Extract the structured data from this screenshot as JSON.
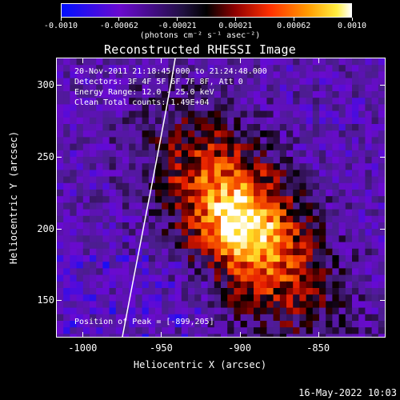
{
  "colorbar": {
    "tick_labels": [
      "-0.0010",
      "-0.00062",
      "-0.00021",
      "0.00021",
      "0.00062",
      "0.0010"
    ],
    "units": "(photons cm⁻² s⁻¹ asec⁻²)",
    "range": [
      -0.001,
      0.001
    ]
  },
  "title": "Reconstructed RHESSI Image",
  "info": {
    "time_range": "20-Nov-2011 21:18:45.000 to 21:24:48.000",
    "detectors": "Detectors: 3F 4F 5F 6F 7F 8F, Att 0",
    "energy_range": "Energy Range: 12.0 - 25.0 keV",
    "method": "Clean    Total counts: 1.49E+04",
    "peak": "Position of Peak = [-899,205]"
  },
  "axes": {
    "x_title": "Heliocentric X (arcsec)",
    "y_title": "Heliocentric Y (arcsec)",
    "x_ticks": [
      "-1000",
      "-950",
      "-900",
      "-850"
    ],
    "y_ticks": [
      "300",
      "250",
      "200",
      "150"
    ],
    "x_range": [
      -1017,
      -807
    ],
    "y_range": [
      124,
      319
    ]
  },
  "colors": {
    "colormap": [
      "#0000ff",
      "#7a00c0",
      "#5a2aa8",
      "#000000",
      "#8b0000",
      "#ff3000",
      "#ff9000",
      "#ffe000",
      "#ffffff"
    ],
    "limb": "#ffffff"
  },
  "footer": {
    "date": "16-May-2022 10:03"
  }
}
